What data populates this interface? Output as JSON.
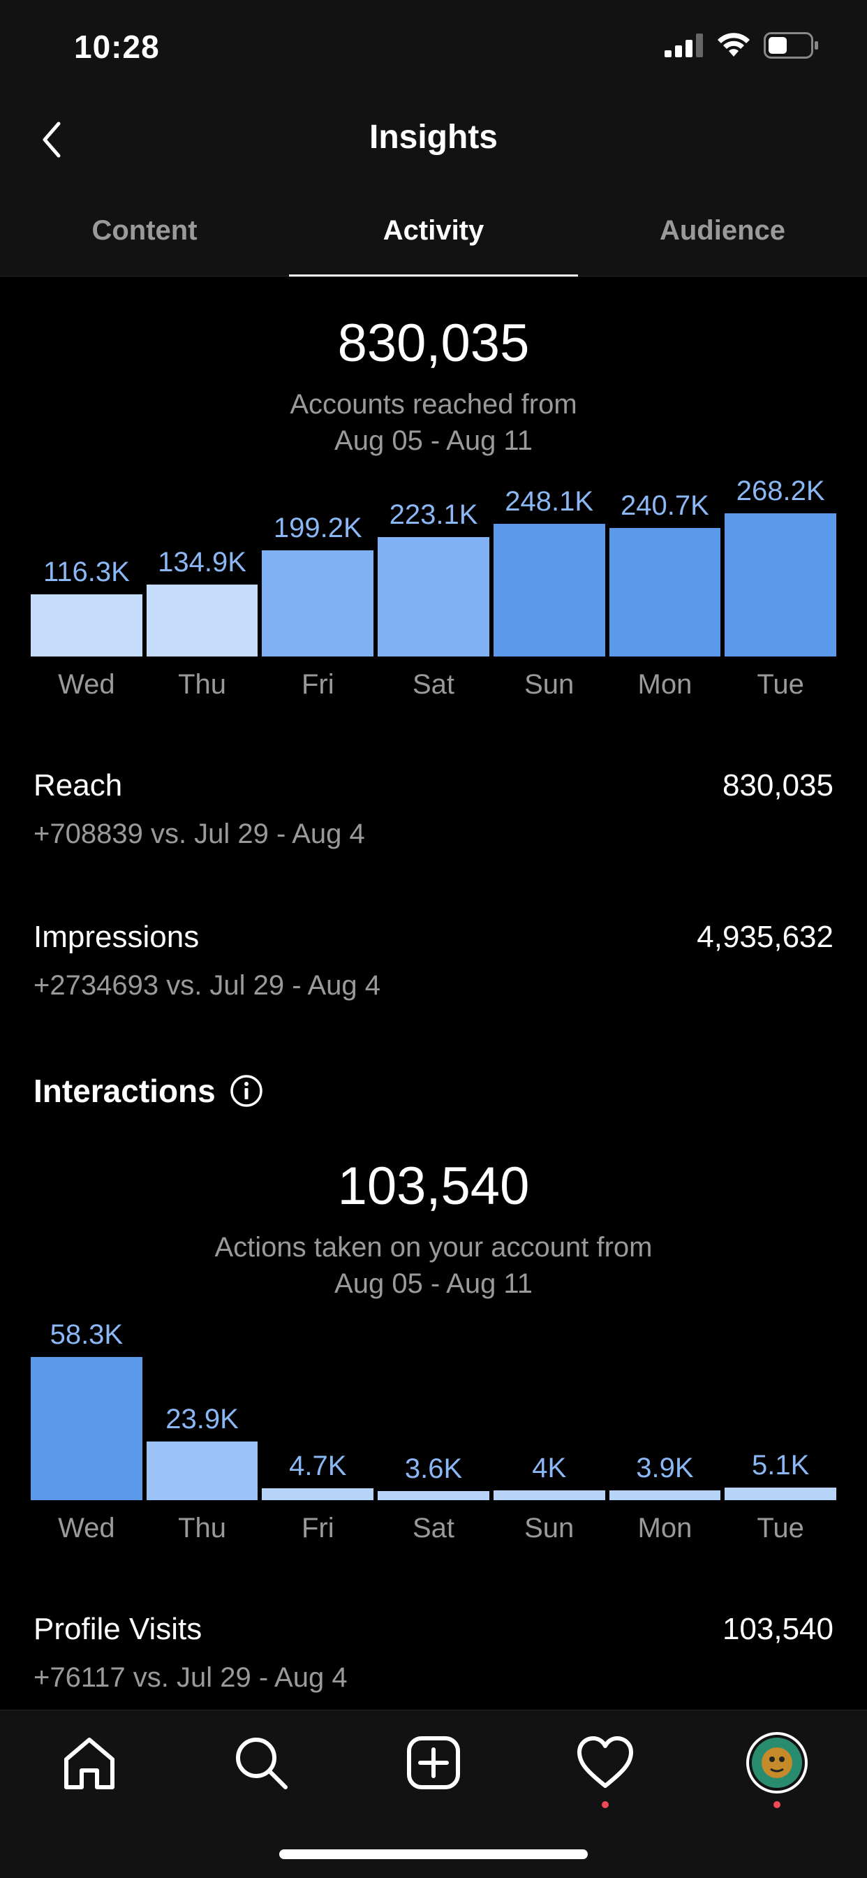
{
  "status_bar": {
    "time": "10:28"
  },
  "header": {
    "title": "Insights"
  },
  "tabs": [
    {
      "label": "Content",
      "active": false
    },
    {
      "label": "Activity",
      "active": true
    },
    {
      "label": "Audience",
      "active": false
    }
  ],
  "reach_summary": {
    "total": "830,035",
    "caption_line1": "Accounts reached from",
    "caption_line2": "Aug 05 - Aug 11"
  },
  "metrics": {
    "reach": {
      "name": "Reach",
      "value": "830,035",
      "compare": "+708839 vs. Jul 29 - Aug 4"
    },
    "impressions": {
      "name": "Impressions",
      "value": "4,935,632",
      "compare": "+2734693 vs. Jul 29 - Aug 4"
    },
    "profile_visits": {
      "name": "Profile Visits",
      "value": "103,540",
      "compare": "+76117 vs. Jul 29 - Aug 4"
    }
  },
  "interactions": {
    "section_title": "Interactions",
    "total": "103,540",
    "caption_line1": "Actions taken on your account from",
    "caption_line2": "Aug 05 - Aug 11"
  },
  "chart_data": [
    {
      "type": "bar",
      "categories": [
        "Wed",
        "Thu",
        "Fri",
        "Sat",
        "Sun",
        "Mon",
        "Tue"
      ],
      "values": [
        116300,
        134900,
        199200,
        223100,
        248100,
        240700,
        268200
      ],
      "value_labels": [
        "116.3K",
        "134.9K",
        "199.2K",
        "223.1K",
        "248.1K",
        "240.7K",
        "268.2K"
      ],
      "title": "",
      "xlabel": "",
      "ylabel": "",
      "ylim": [
        0,
        268200
      ],
      "grid": false,
      "colors": [
        "#c5dcfb",
        "#c5dcfb",
        "#7fb1f4",
        "#7fb1f4",
        "#5b99ea",
        "#5b99ea",
        "#5b99ea"
      ]
    },
    {
      "type": "bar",
      "categories": [
        "Wed",
        "Thu",
        "Fri",
        "Sat",
        "Sun",
        "Mon",
        "Tue"
      ],
      "values": [
        58300,
        23900,
        4700,
        3600,
        4000,
        3900,
        5100
      ],
      "value_labels": [
        "58.3K",
        "23.9K",
        "4.7K",
        "3.6K",
        "4K",
        "3.9K",
        "5.1K"
      ],
      "title": "",
      "xlabel": "",
      "ylabel": "",
      "ylim": [
        0,
        58300
      ],
      "grid": false,
      "colors": [
        "#5b99ea",
        "#9cc3f7",
        "#b8d3f8",
        "#b8d3f8",
        "#b8d3f8",
        "#b8d3f8",
        "#b8d3f8"
      ]
    }
  ],
  "bottom_nav": [
    {
      "icon": "home-icon"
    },
    {
      "icon": "search-icon"
    },
    {
      "icon": "add-post-icon"
    },
    {
      "icon": "heart-icon"
    },
    {
      "icon": "profile-avatar"
    }
  ]
}
